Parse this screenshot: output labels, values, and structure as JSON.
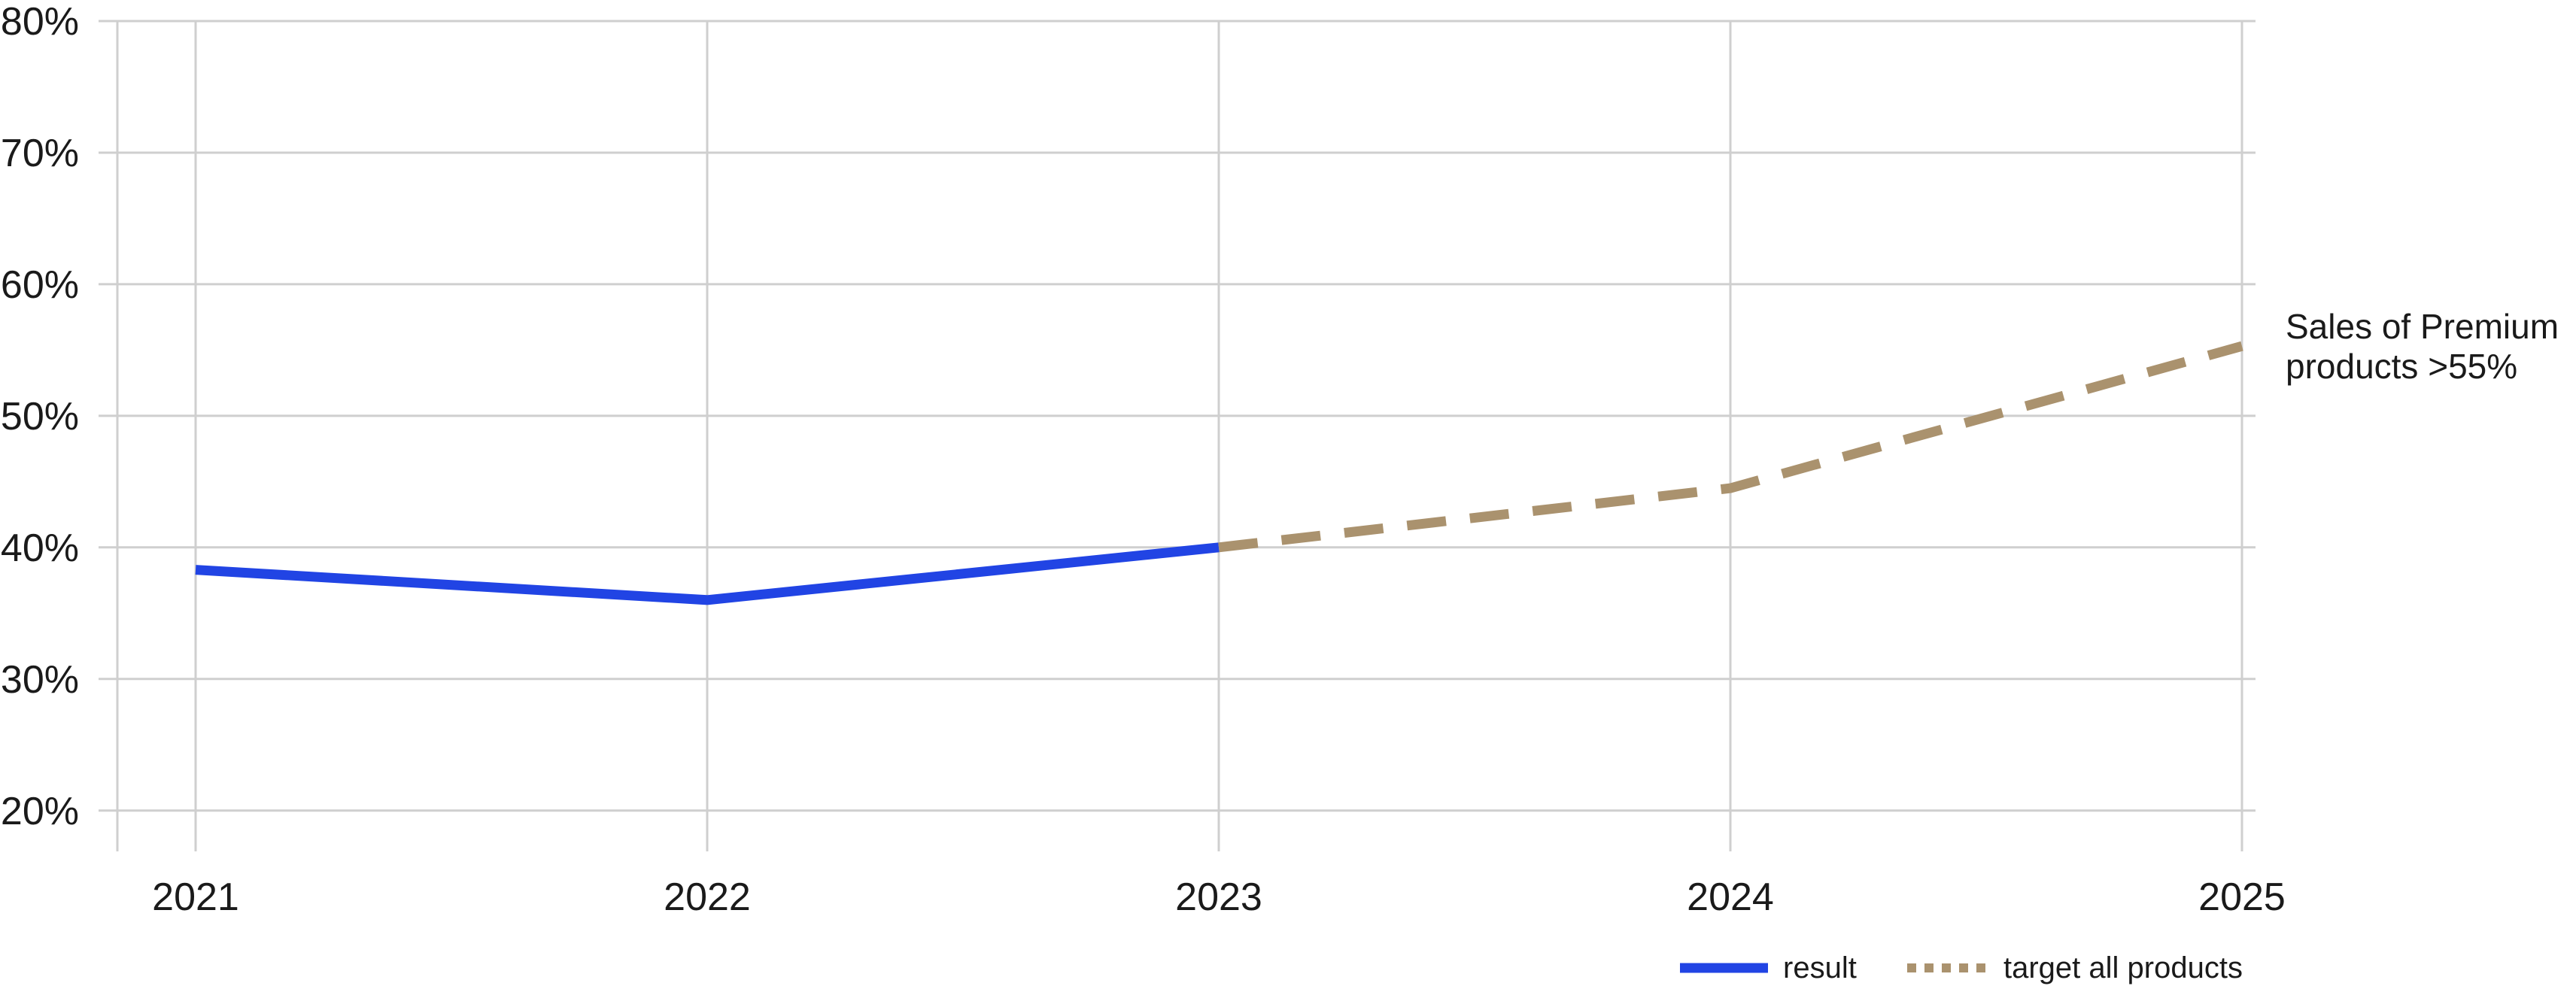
{
  "colors": {
    "result_line": "#2144E4",
    "target_line": "#AA926E",
    "gridline": "#CFCFCF",
    "text": "#1A1A1A",
    "background": "#FFFFFF"
  },
  "chart_data": {
    "type": "line",
    "title": "",
    "xlabel": "",
    "ylabel": "",
    "grid": true,
    "legend_position": "bottom-right",
    "x": [
      2021,
      2022,
      2023,
      2024,
      2025
    ],
    "x_tick_labels": [
      "2021",
      "2022",
      "2023",
      "2024",
      "2025"
    ],
    "y_ticks": [
      80,
      70,
      60,
      50,
      40,
      30,
      20
    ],
    "y_tick_labels": [
      "80%",
      "70%",
      "60%",
      "50%",
      "40%",
      "30%",
      "20%"
    ],
    "ylim": [
      16.9,
      80
    ],
    "series": [
      {
        "name": "result",
        "style": "solid",
        "color": "#2144E4",
        "points": [
          {
            "x": 2021,
            "y": 38.3
          },
          {
            "x": 2022,
            "y": 36.0
          },
          {
            "x": 2023,
            "y": 40.0
          }
        ]
      },
      {
        "name": "target all products",
        "style": "dashed",
        "color": "#AA926E",
        "points": [
          {
            "x": 2023,
            "y": 40.0
          },
          {
            "x": 2024,
            "y": 44.5
          },
          {
            "x": 2025,
            "y": 55.3
          }
        ]
      }
    ],
    "annotation": {
      "text": "Sales of Premium products >55%",
      "lines": [
        "Sales of Premium",
        "products >55%"
      ],
      "anchor_x": 2025,
      "anchor_y": 55.3
    }
  },
  "legend": {
    "items": [
      {
        "label": "result",
        "swatch": "solid-blue-line"
      },
      {
        "label": "target all products",
        "swatch": "dotted-tan-line"
      }
    ]
  }
}
